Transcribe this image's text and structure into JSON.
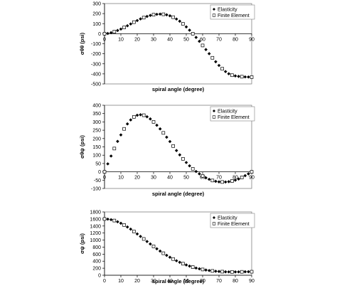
{
  "chart_data": [
    {
      "type": "scatter",
      "ylabel": "σθθ (psi)",
      "xlabel": "spiral angle (degree)",
      "xlim": [
        0,
        90
      ],
      "ylim": [
        -500,
        300
      ],
      "xticks": [
        0,
        10,
        20,
        30,
        40,
        50,
        60,
        70,
        80,
        90
      ],
      "yticks": [
        -500,
        -400,
        -300,
        -200,
        -100,
        0,
        100,
        200,
        300
      ],
      "grid": false,
      "legend_position": "top-right",
      "series": [
        {
          "name": "Elasticity",
          "marker": "diamond-filled",
          "x": [
            0,
            2,
            4,
            6,
            8,
            10,
            12,
            14,
            16,
            18,
            20,
            22,
            24,
            26,
            28,
            30,
            32,
            34,
            36,
            38,
            40,
            42,
            44,
            46,
            48,
            50,
            52,
            54,
            56,
            58,
            60,
            62,
            64,
            66,
            68,
            70,
            72,
            74,
            76,
            78,
            80,
            82,
            84,
            86,
            88,
            90
          ],
          "y": [
            0,
            2,
            10,
            20,
            32,
            46,
            62,
            79,
            97,
            115,
            131,
            147,
            160,
            172,
            182,
            189,
            193,
            195,
            193,
            188,
            178,
            164,
            146,
            124,
            98,
            68,
            35,
            0,
            -37,
            -76,
            -117,
            -158,
            -199,
            -240,
            -279,
            -316,
            -349,
            -377,
            -399,
            -413,
            -420,
            -425,
            -428,
            -430,
            -431,
            -432
          ]
        },
        {
          "name": "Finite Element",
          "marker": "square-open",
          "x": [
            0,
            6,
            12,
            18,
            24,
            30,
            36,
            42,
            48,
            54,
            60,
            66,
            72,
            78,
            84,
            90
          ],
          "y": [
            0,
            20,
            62,
            115,
            160,
            189,
            193,
            164,
            98,
            0,
            -117,
            -240,
            -349,
            -413,
            -428,
            -432
          ]
        }
      ]
    },
    {
      "type": "scatter",
      "ylabel": "σθψ (psi)",
      "xlabel": "spiral angle (degree)",
      "xlim": [
        0,
        90
      ],
      "ylim": [
        -100,
        400
      ],
      "xticks": [
        0,
        10,
        20,
        30,
        40,
        50,
        60,
        70,
        80,
        90
      ],
      "yticks": [
        -100,
        -50,
        0,
        50,
        100,
        150,
        200,
        250,
        300,
        350,
        400
      ],
      "grid": false,
      "legend_position": "top-right",
      "series": [
        {
          "name": "Elasticity",
          "marker": "diamond-filled",
          "x": [
            0,
            2,
            4,
            6,
            8,
            10,
            12,
            14,
            16,
            18,
            20,
            22,
            24,
            26,
            28,
            30,
            32,
            34,
            36,
            38,
            40,
            42,
            44,
            46,
            48,
            50,
            52,
            54,
            56,
            58,
            60,
            62,
            64,
            66,
            68,
            70,
            72,
            74,
            76,
            78,
            80,
            82,
            84,
            86,
            88,
            90
          ],
          "y": [
            0,
            48,
            95,
            140,
            183,
            222,
            258,
            288,
            312,
            330,
            340,
            343,
            340,
            331,
            318,
            300,
            280,
            258,
            234,
            208,
            182,
            155,
            128,
            102,
            78,
            56,
            36,
            18,
            2,
            -12,
            -25,
            -36,
            -45,
            -52,
            -57,
            -60,
            -61,
            -61,
            -59,
            -55,
            -50,
            -43,
            -34,
            -23,
            -12,
            0
          ]
        },
        {
          "name": "Finite Element",
          "marker": "square-open",
          "x": [
            0,
            6,
            12,
            18,
            24,
            30,
            36,
            42,
            48,
            54,
            60,
            66,
            72,
            78,
            84,
            90
          ],
          "y": [
            0,
            140,
            258,
            330,
            340,
            300,
            234,
            155,
            78,
            18,
            -25,
            -52,
            -61,
            -55,
            -34,
            0
          ]
        }
      ]
    },
    {
      "type": "scatter",
      "ylabel": "σψ (psi)",
      "xlabel": "spiral angle (degree)",
      "xlim": [
        0,
        90
      ],
      "ylim": [
        0,
        1800
      ],
      "xticks": [
        0,
        10,
        20,
        30,
        40,
        50,
        60,
        70,
        80,
        90
      ],
      "yticks": [
        0,
        200,
        400,
        600,
        800,
        1000,
        1200,
        1400,
        1600,
        1800
      ],
      "grid": false,
      "legend_position": "top-right",
      "series": [
        {
          "name": "Elasticity",
          "marker": "diamond-filled",
          "x": [
            0,
            2,
            4,
            6,
            8,
            10,
            12,
            14,
            16,
            18,
            20,
            22,
            24,
            26,
            28,
            30,
            32,
            34,
            36,
            38,
            40,
            42,
            44,
            46,
            48,
            50,
            52,
            54,
            56,
            58,
            60,
            62,
            64,
            66,
            68,
            70,
            72,
            74,
            76,
            78,
            80,
            82,
            84,
            86,
            88,
            90
          ],
          "y": [
            1600,
            1595,
            1580,
            1555,
            1520,
            1478,
            1428,
            1372,
            1310,
            1244,
            1175,
            1104,
            1032,
            960,
            889,
            820,
            752,
            687,
            625,
            566,
            511,
            460,
            412,
            368,
            328,
            292,
            260,
            231,
            205,
            183,
            164,
            148,
            134,
            123,
            114,
            107,
            102,
            98,
            96,
            95,
            95,
            96,
            97,
            99,
            100,
            100
          ]
        },
        {
          "name": "Finite Element",
          "marker": "square-open",
          "x": [
            0,
            6,
            12,
            18,
            24,
            30,
            36,
            42,
            48,
            54,
            60,
            66,
            72,
            78,
            84,
            90
          ],
          "y": [
            1600,
            1555,
            1428,
            1244,
            1032,
            820,
            625,
            460,
            328,
            231,
            164,
            123,
            102,
            95,
            97,
            100
          ]
        }
      ]
    }
  ]
}
